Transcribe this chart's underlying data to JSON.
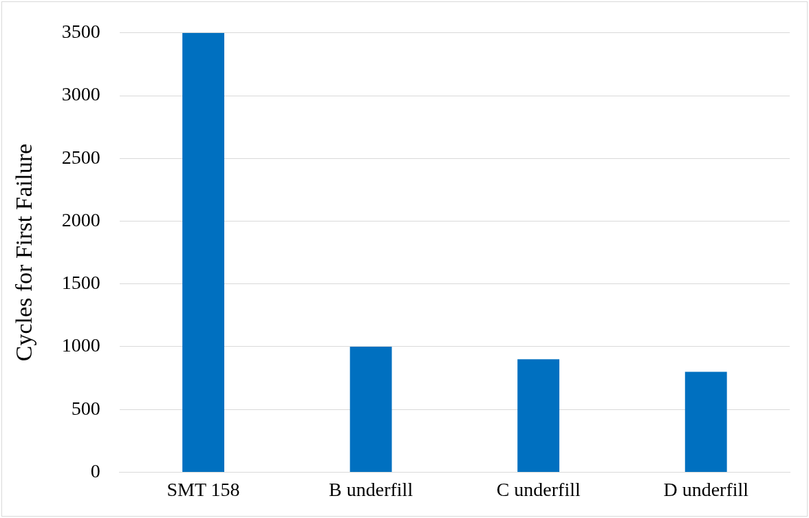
{
  "chart_data": {
    "type": "bar",
    "ylabel": "Cycles for First Failure",
    "categories": [
      "SMT 158",
      "B underfill",
      "C underfill",
      "D underfill"
    ],
    "values": [
      3500,
      1000,
      900,
      800
    ],
    "color": "#0070c0",
    "ylim": [
      0,
      3500
    ],
    "yticks": [
      0,
      500,
      1000,
      1500,
      2000,
      2500,
      3000,
      3500
    ],
    "grid": "y",
    "legend": false
  }
}
